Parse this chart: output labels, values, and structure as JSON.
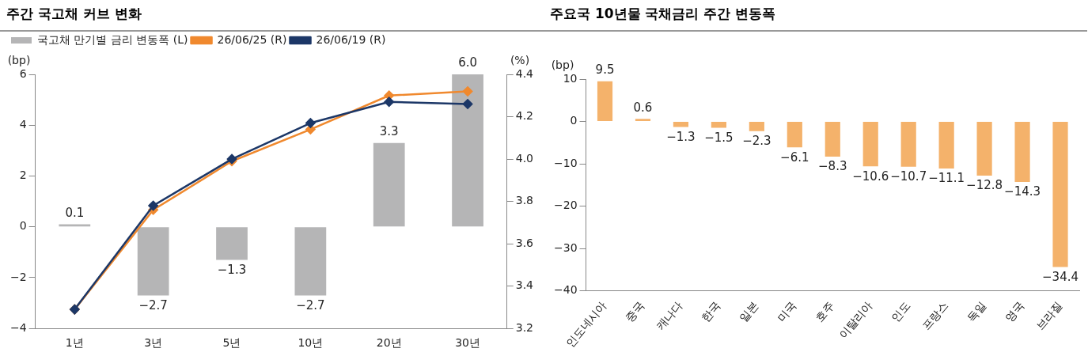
{
  "chart_data": [
    {
      "type": "bar",
      "title": "주간 국고채 커브 변화",
      "ylabel": "(bp)",
      "y2label": "(%)",
      "categories": [
        "1년",
        "3년",
        "5년",
        "10년",
        "20년",
        "30년"
      ],
      "series": [
        {
          "name": "국고채 만기별 금리 변동폭 (L)",
          "type": "bar",
          "color": "#b5b5b6",
          "values": [
            0.1,
            -2.7,
            -1.3,
            -2.7,
            3.3,
            6.0
          ],
          "value_labels": [
            "0.1",
            "−2.7",
            "−1.3",
            "−2.7",
            "3.3",
            "6.0"
          ]
        },
        {
          "name": "26/06/25 (R)",
          "type": "line",
          "axis": "y2",
          "color": "#f0892e",
          "values": [
            3.29,
            3.76,
            3.99,
            4.14,
            4.3,
            4.32
          ]
        },
        {
          "name": "26/06/19 (R)",
          "type": "line",
          "axis": "y2",
          "color": "#1c3767",
          "values": [
            3.29,
            3.78,
            4.0,
            4.17,
            4.27,
            4.26
          ]
        }
      ],
      "ylim": [
        -4,
        6
      ],
      "yticks": [
        {
          "value": -4,
          "label": "−4"
        },
        {
          "value": -2,
          "label": "−2"
        },
        0,
        2,
        4,
        6
      ],
      "y2lim": [
        3.2,
        4.4
      ],
      "y2ticks": [
        3.2,
        3.4,
        3.6,
        3.8,
        {
          "value": 4,
          "label": "4.0"
        },
        4.2,
        4.4
      ],
      "grid": false,
      "legend": "top left",
      "marker": "diamond",
      "line_style": "solid"
    },
    {
      "type": "bar",
      "title": "주요국 10년물 국채금리 주간 변동폭",
      "ylabel": "(bp)",
      "categories": [
        "인도네시아",
        "중국",
        "캐나다",
        "한국",
        "일본",
        "미국",
        "호주",
        "이탈리아",
        "인도",
        "프랑스",
        "독일",
        "영국",
        "브라질"
      ],
      "series": [
        {
          "color": "#f4b26b",
          "values": [
            9.5,
            0.6,
            -1.3,
            -1.5,
            -2.3,
            -6.1,
            -8.3,
            -10.6,
            -10.7,
            -11.1,
            -12.8,
            -14.3,
            -34.4
          ],
          "value_labels": [
            "9.5",
            "0.6",
            "−1.3",
            "−1.5",
            "−2.3",
            "−6.1",
            "−8.3",
            "−10.6",
            "−10.7",
            "−11.1",
            "−12.8",
            "−14.3",
            "−34.4"
          ]
        }
      ],
      "ylim": [
        -40,
        10
      ],
      "yticks": [
        {
          "value": -40,
          "label": "−40"
        },
        {
          "value": -30,
          "label": "−30"
        },
        {
          "value": -20,
          "label": "−20"
        },
        {
          "value": -10,
          "label": "−10"
        },
        0,
        10
      ],
      "grid": false
    }
  ]
}
